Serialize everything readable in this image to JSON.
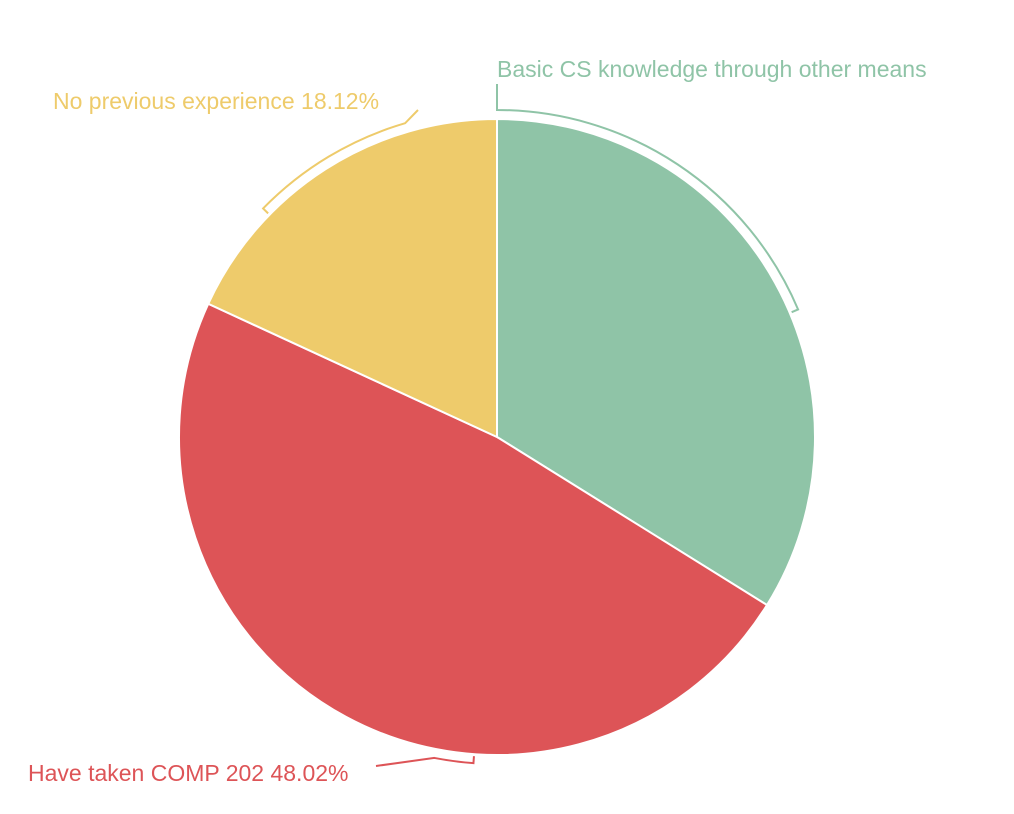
{
  "chart_data": {
    "type": "pie",
    "title": "",
    "slices": [
      {
        "label": "Basic CS knowledge through other means",
        "value": 33.86,
        "display": "Basic CS knowledge through other means",
        "color": "#8fc4a7"
      },
      {
        "label": "Have taken COMP 202",
        "value": 48.02,
        "display": "Have taken COMP 202 48.02%",
        "color": "#dd5457"
      },
      {
        "label": "No previous experience",
        "value": 18.12,
        "display": "No previous experience 18.12%",
        "color": "#eecb6b"
      }
    ]
  }
}
